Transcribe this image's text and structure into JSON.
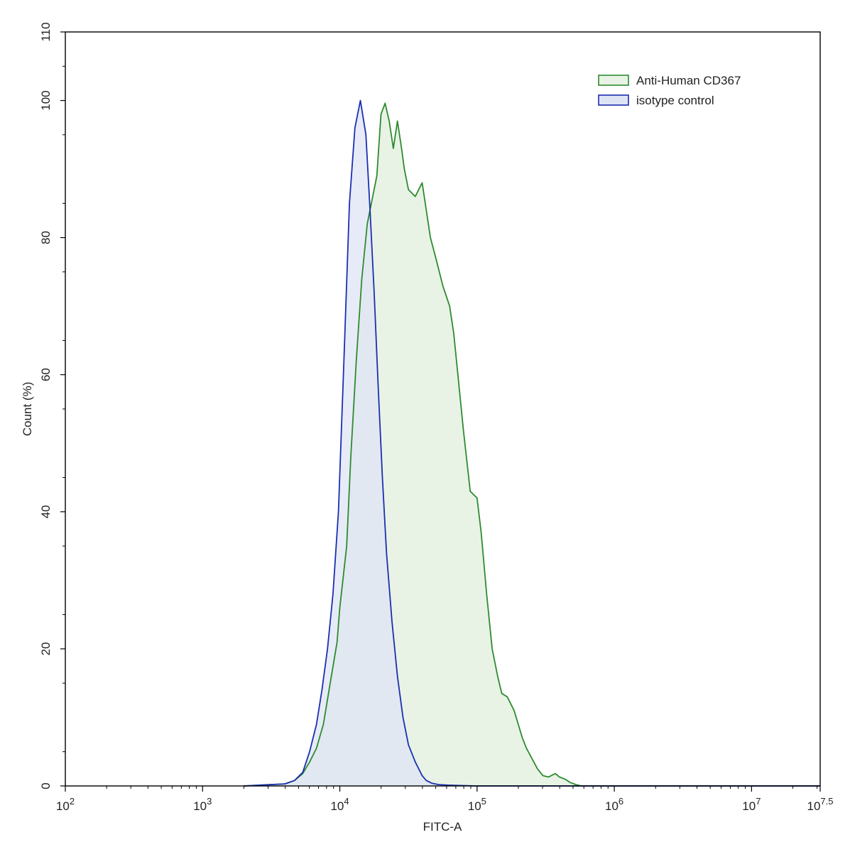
{
  "chart_data": {
    "type": "area",
    "title": "",
    "xlabel": "FITC-A",
    "ylabel": "Count  (%)",
    "x_scale": "log10",
    "xlim_exponent": [
      2,
      7.5
    ],
    "ylim": [
      0,
      110
    ],
    "x_ticks": [
      {
        "base": "10",
        "exp": "2"
      },
      {
        "base": "10",
        "exp": "3"
      },
      {
        "base": "10",
        "exp": "4"
      },
      {
        "base": "10",
        "exp": "5"
      },
      {
        "base": "10",
        "exp": "6"
      },
      {
        "base": "10",
        "exp": "7"
      },
      {
        "base": "10",
        "exp": "7.5"
      }
    ],
    "y_ticks": [
      "0",
      "20",
      "40",
      "60",
      "80",
      "100",
      "110"
    ],
    "legend_position": "top-right",
    "grid": false,
    "series": [
      {
        "name": "Anti-Human CD367",
        "stroke": "#2e8b2e",
        "fill": "#e8f3e6",
        "log_x": [
          3.3,
          3.6,
          3.67,
          3.73,
          3.78,
          3.83,
          3.88,
          3.93,
          3.98,
          4.0,
          4.05,
          4.08,
          4.12,
          4.16,
          4.2,
          4.24,
          4.27,
          4.3,
          4.33,
          4.36,
          4.39,
          4.42,
          4.45,
          4.47,
          4.5,
          4.55,
          4.6,
          4.63,
          4.66,
          4.7,
          4.75,
          4.8,
          4.83,
          4.86,
          4.9,
          4.95,
          5.0,
          5.03,
          5.07,
          5.11,
          5.15,
          5.18,
          5.22,
          5.27,
          5.3,
          5.33,
          5.36,
          5.4,
          5.44,
          5.48,
          5.52,
          5.57,
          5.6,
          5.64,
          5.68,
          5.72,
          5.76,
          5.8,
          5.86,
          5.92,
          5.97,
          6.0,
          6.05,
          6.1,
          6.2,
          6.35,
          6.4,
          6.5,
          7.0,
          7.5
        ],
        "count": [
          0,
          0.3,
          0.8,
          1.8,
          3.5,
          5.5,
          9,
          15,
          21,
          26,
          35,
          48,
          62,
          74,
          82,
          86,
          89,
          98,
          99.6,
          97,
          93,
          97,
          93,
          90,
          87,
          86,
          88,
          84,
          80,
          77,
          73,
          70,
          66,
          60,
          52,
          43,
          42,
          37,
          28,
          20,
          16,
          13.5,
          13,
          11,
          9,
          7,
          5.5,
          4,
          2.5,
          1.5,
          1.3,
          1.8,
          1.3,
          1,
          0.5,
          0.2,
          0,
          0,
          0,
          0,
          0,
          0,
          0,
          0,
          0,
          0,
          0,
          0,
          0,
          0
        ]
      },
      {
        "name": "isotype control",
        "stroke": "#1a2fb0",
        "fill": "#dfe4f4",
        "log_x": [
          3.3,
          3.6,
          3.67,
          3.73,
          3.78,
          3.83,
          3.87,
          3.91,
          3.95,
          3.99,
          4.03,
          4.07,
          4.11,
          4.15,
          4.19,
          4.22,
          4.25,
          4.28,
          4.31,
          4.34,
          4.38,
          4.42,
          4.46,
          4.5,
          4.55,
          4.6,
          4.63,
          4.67,
          4.72,
          4.8,
          4.9,
          5.0,
          5.2,
          5.5,
          6.0,
          7.0,
          7.5
        ],
        "count": [
          0,
          0.3,
          0.8,
          2,
          5,
          9,
          14,
          20,
          28,
          40,
          62,
          85,
          96,
          100,
          95,
          84,
          72,
          58,
          45,
          34,
          24,
          16,
          10,
          6,
          3.5,
          1.5,
          0.8,
          0.4,
          0.2,
          0.1,
          0.05,
          0,
          0,
          0,
          0,
          0,
          0
        ]
      }
    ]
  }
}
